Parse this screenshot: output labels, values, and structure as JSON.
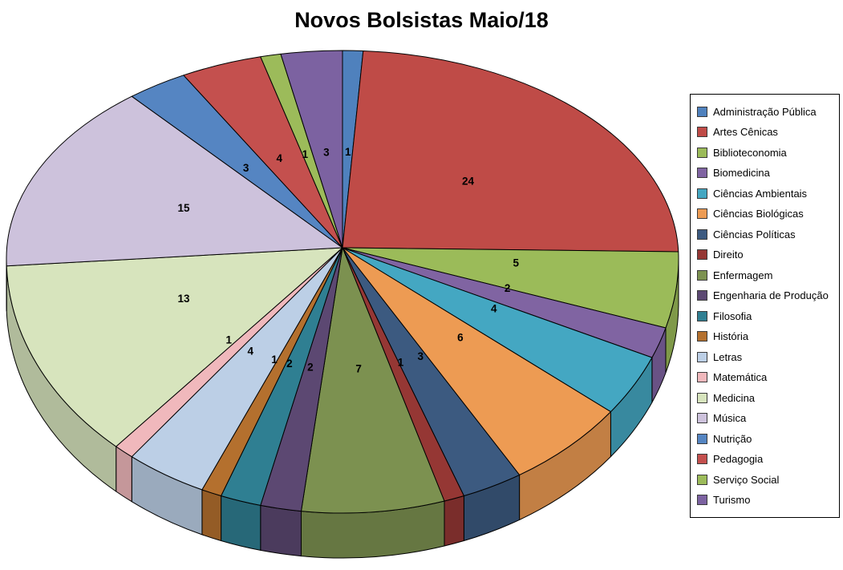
{
  "page": {
    "background": "#ffffff"
  },
  "chart_data": {
    "type": "pie",
    "style": "3d",
    "title": "Novos Bolsistas Maio/18",
    "legend_position": "right",
    "data_labels": "value",
    "direction": "clockwise",
    "start_angle_deg": 0,
    "total": 102,
    "categories": [
      "Administração Pública",
      "Artes Cênicas",
      "Biblioteconomia",
      "Biomedicina",
      "Ciências Ambientais",
      "Ciências Biológicas",
      "Ciências Políticas",
      "Direito",
      "Enfermagem",
      "Engenharia de Produção",
      "Filosofia",
      "História",
      "Letras",
      "Matemática",
      "Medicina",
      "Música",
      "Nutrição",
      "Pedagogia",
      "Serviço Social",
      "Turismo"
    ],
    "values": [
      1,
      24,
      5,
      2,
      4,
      6,
      3,
      1,
      7,
      2,
      2,
      1,
      4,
      1,
      13,
      15,
      3,
      4,
      1,
      3
    ],
    "colors": [
      "#4F81BD",
      "#BF4B47",
      "#9BBB59",
      "#8064A2",
      "#44A7C2",
      "#ED9B53",
      "#3C5A80",
      "#953734",
      "#7C9150",
      "#5C4872",
      "#2F7F92",
      "#B4702E",
      "#BCCFE6",
      "#F0B8BC",
      "#D7E4BD",
      "#CDC2DC",
      "#5585C2",
      "#C4504E",
      "#9CBB5A",
      "#7C62A1"
    ],
    "label_color": "#000000",
    "outline_color": "#000000"
  }
}
